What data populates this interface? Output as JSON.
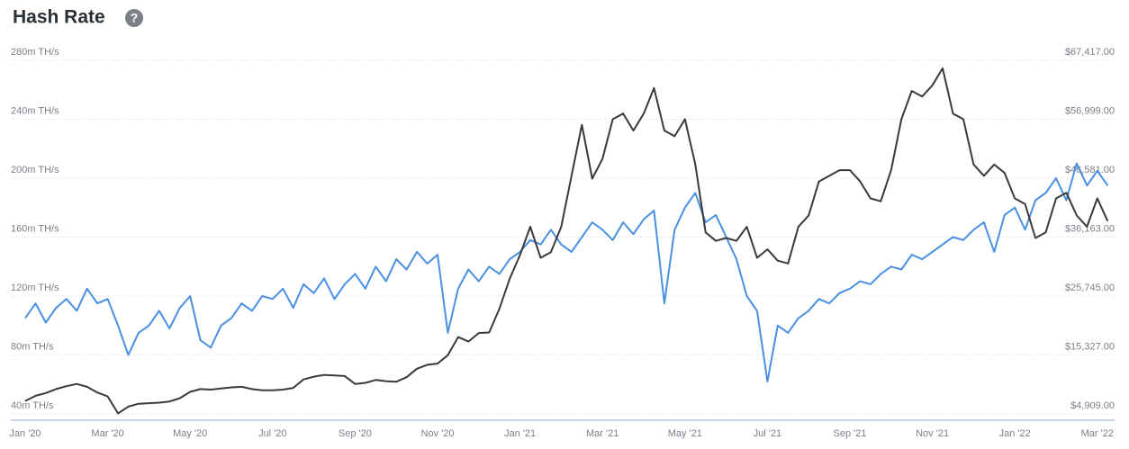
{
  "chart_data": {
    "type": "line",
    "title": "Hash Rate",
    "categories": [
      "Jan '20",
      null,
      null,
      null,
      null,
      null,
      null,
      null,
      "Mar '20",
      null,
      null,
      null,
      null,
      null,
      null,
      null,
      "May '20",
      null,
      null,
      null,
      null,
      null,
      null,
      null,
      "Jul '20",
      null,
      null,
      null,
      null,
      null,
      null,
      null,
      "Sep '20",
      null,
      null,
      null,
      null,
      null,
      null,
      null,
      "Nov '20",
      null,
      null,
      null,
      null,
      null,
      null,
      null,
      "Jan '21",
      null,
      null,
      null,
      null,
      null,
      null,
      null,
      "Mar '21",
      null,
      null,
      null,
      null,
      null,
      null,
      null,
      "May '21",
      null,
      null,
      null,
      null,
      null,
      null,
      null,
      "Jul '21",
      null,
      null,
      null,
      null,
      null,
      null,
      null,
      "Sep '21",
      null,
      null,
      null,
      null,
      null,
      null,
      null,
      "Nov '21",
      null,
      null,
      null,
      null,
      null,
      null,
      null,
      "Jan '22",
      null,
      null,
      null,
      null,
      null,
      null,
      null,
      "Mar '22",
      null
    ],
    "series": [
      {
        "color": "#4a90e2",
        "axis": "y",
        "values": [
          105,
          115,
          102,
          112,
          118,
          110,
          125,
          115,
          118,
          100,
          80,
          95,
          100,
          110,
          98,
          112,
          120,
          90,
          85,
          100,
          105,
          115,
          110,
          120,
          118,
          125,
          112,
          128,
          122,
          132,
          118,
          128,
          135,
          125,
          140,
          130,
          145,
          138,
          150,
          142,
          148,
          95,
          125,
          138,
          130,
          140,
          135,
          145,
          150,
          158,
          155,
          165,
          155,
          150,
          160,
          170,
          165,
          158,
          170,
          162,
          172,
          178,
          115,
          165,
          180,
          190,
          170,
          175,
          160,
          145,
          120,
          110,
          62,
          100,
          95,
          105,
          110,
          118,
          115,
          122,
          125,
          130,
          128,
          135,
          140,
          138,
          148,
          145,
          150,
          155,
          160,
          158,
          165,
          170,
          150,
          175,
          180,
          165,
          185,
          190,
          200,
          185,
          210,
          195,
          205,
          195
        ]
      },
      {
        "color": "#3a3a3a",
        "axis": "y2",
        "values": [
          7200,
          8100,
          8600,
          9300,
          9800,
          10200,
          9700,
          8700,
          8000,
          5000,
          6200,
          6700,
          6800,
          6900,
          7100,
          7700,
          8800,
          9300,
          9200,
          9400,
          9600,
          9700,
          9300,
          9100,
          9100,
          9200,
          9500,
          11000,
          11500,
          11800,
          11700,
          11600,
          10200,
          10400,
          10900,
          10700,
          10600,
          11400,
          12900,
          13600,
          13800,
          15300,
          18500,
          17700,
          19200,
          19300,
          23500,
          28800,
          33000,
          38000,
          32500,
          33500,
          38000,
          47000,
          56000,
          46500,
          50000,
          57000,
          58000,
          55000,
          58000,
          62500,
          55000,
          54000,
          57000,
          49000,
          37000,
          35500,
          36000,
          35500,
          38000,
          32500,
          34000,
          32000,
          31500,
          38000,
          40000,
          46000,
          47000,
          48000,
          48000,
          46000,
          43000,
          42500,
          48000,
          57000,
          62000,
          61000,
          63000,
          66000,
          58000,
          57000,
          49000,
          47000,
          49000,
          47500,
          43000,
          42000,
          36000,
          37000,
          43000,
          44000,
          40000,
          38000,
          43000,
          39000
        ]
      }
    ],
    "ylim": [
      40,
      280
    ],
    "yticks": [
      {
        "value": 40,
        "label": "40m TH/s"
      },
      {
        "value": 80,
        "label": "80m TH/s"
      },
      {
        "value": 120,
        "label": "120m TH/s"
      },
      {
        "value": 160,
        "label": "160m TH/s"
      },
      {
        "value": 200,
        "label": "200m TH/s"
      },
      {
        "value": 240,
        "label": "240m TH/s"
      },
      {
        "value": 280,
        "label": "280m TH/s"
      }
    ],
    "y2lim": [
      4909,
      67417
    ],
    "y2ticks": [
      {
        "value": 4909,
        "label": "$4,909.00"
      },
      {
        "value": 15327,
        "label": "$15,327.00"
      },
      {
        "value": 25745,
        "label": "$25,745.00"
      },
      {
        "value": 36163,
        "label": "$36,163.00"
      },
      {
        "value": 46581,
        "label": "$46,581.00"
      },
      {
        "value": 56999,
        "label": "$56,999.00"
      },
      {
        "value": 67417,
        "label": "$67,417.00"
      }
    ],
    "grid": true
  }
}
